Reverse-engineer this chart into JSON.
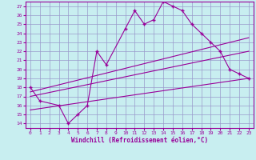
{
  "xlabel": "Windchill (Refroidissement éolien,°C)",
  "bg_color": "#c8eef0",
  "grid_color": "#9999cc",
  "line_color": "#990099",
  "xlim": [
    -0.5,
    23.5
  ],
  "ylim": [
    13.5,
    27.5
  ],
  "xticks": [
    0,
    1,
    2,
    3,
    4,
    5,
    6,
    7,
    8,
    9,
    10,
    11,
    12,
    13,
    14,
    15,
    16,
    17,
    18,
    19,
    20,
    21,
    22,
    23
  ],
  "yticks": [
    14,
    15,
    16,
    17,
    18,
    19,
    20,
    21,
    22,
    23,
    24,
    25,
    26,
    27
  ],
  "line1_x": [
    0,
    1,
    3,
    4,
    5,
    6,
    7,
    8,
    10,
    11,
    12,
    13,
    14,
    15,
    16,
    17,
    18,
    19,
    20,
    21,
    22,
    23
  ],
  "line1_y": [
    18.0,
    16.5,
    16.0,
    14.0,
    15.0,
    16.0,
    22.0,
    20.5,
    24.5,
    26.5,
    25.0,
    25.5,
    27.5,
    27.0,
    26.5,
    25.0,
    24.0,
    23.0,
    22.0,
    20.0,
    19.5,
    19.0
  ],
  "line2_x": [
    0,
    23
  ],
  "line2_y": [
    15.5,
    19.0
  ],
  "line3_x": [
    0,
    23
  ],
  "line3_y": [
    17.0,
    22.0
  ],
  "line4_x": [
    0,
    23
  ],
  "line4_y": [
    17.5,
    23.5
  ]
}
